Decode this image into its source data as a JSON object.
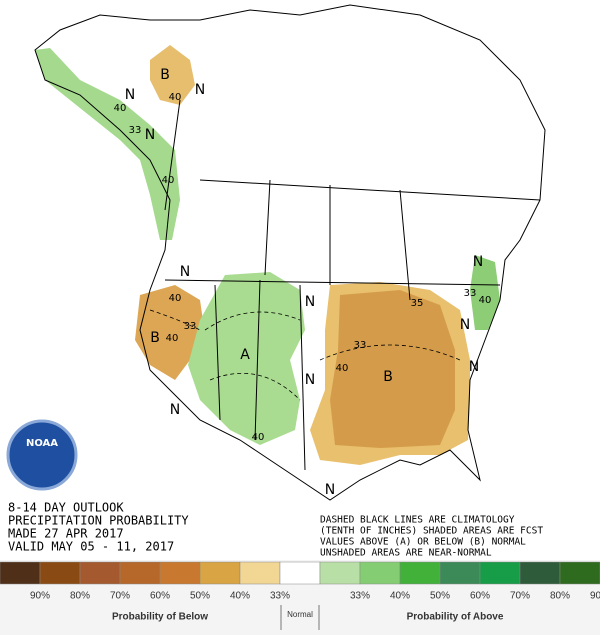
{
  "logo": "NOAA",
  "outlook": [
    "8-14 DAY OUTLOOK",
    "PRECIPITATION PROBABILITY",
    "MADE  27 APR 2017",
    "VALID  MAY 05 - 11, 2017"
  ],
  "notes": [
    "DASHED BLACK LINES ARE CLIMATOLOGY",
    "(TENTH OF INCHES) SHADED AREAS ARE FCST",
    "VALUES ABOVE (A) OR BELOW (B) NORMAL",
    "UNSHADED AREAS ARE NEAR-NORMAL"
  ],
  "map_labels": [
    "N",
    "B",
    "40",
    "N",
    "40",
    "33",
    "N",
    "40",
    "N",
    "40",
    "33",
    "B",
    "40",
    "A",
    "N",
    "N",
    "N",
    "40",
    "33",
    "B",
    "40",
    "35",
    "33",
    "N",
    "N",
    "N",
    "40",
    "N"
  ],
  "legend": {
    "colors": [
      "#4f2f17",
      "#8a4a13",
      "#a45a2e",
      "#b5682a",
      "#c8792f",
      "#d9a443",
      "#f2d694",
      "#ffffff",
      "#b8e0a6",
      "#84cd72",
      "#41b13a",
      "#3c8a58",
      "#179c48",
      "#2e5c3b",
      "#2f6b1e"
    ],
    "labels": [
      "90%",
      "80%",
      "70%",
      "60%",
      "50%",
      "40%",
      "33%",
      "33%",
      "40%",
      "50%",
      "60%",
      "70%",
      "80%",
      "90%"
    ],
    "below": "Probability of Below",
    "normal": "Normal",
    "above": "Probability of Above"
  }
}
